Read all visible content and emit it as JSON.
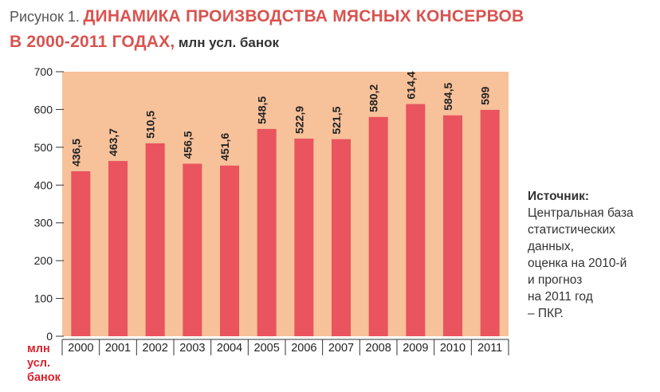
{
  "figure": {
    "label": "Рисунок 1.",
    "title_line1": "ДИНАМИКА ПРОИЗВОДСТВА МЯСНЫХ КОНСЕРВОВ",
    "title_line2": "В 2000-2011 ГОДАХ,",
    "units": "млн усл. банок"
  },
  "source": {
    "title": "Источник:",
    "lines": [
      "Центральная база",
      "статистических",
      "данных,",
      "оценка на 2010-й",
      "и прогноз",
      "на 2011 год",
      "– ПКР."
    ]
  },
  "colors": {
    "plot_bg": "#f7c19a",
    "bar": "#e9545e",
    "axis_unit_label": "#d9232d",
    "title_accent": "#d9534f"
  },
  "chart_data": {
    "type": "bar",
    "title": "ДИНАМИКА ПРОИЗВОДСТВА МЯСНЫХ КОНСЕРВОВ В 2000-2011 ГОДАХ, млн усл. банок",
    "categories": [
      "2000",
      "2001",
      "2002",
      "2003",
      "2004",
      "2005",
      "2006",
      "2007",
      "2008",
      "2009",
      "2010",
      "2011"
    ],
    "values": [
      436.5,
      463.7,
      510.5,
      456.5,
      451.6,
      548.5,
      522.9,
      521.5,
      580.2,
      614.4,
      584.5,
      599
    ],
    "value_labels": [
      "436,5",
      "463,7",
      "510,5",
      "456,5",
      "451,6",
      "548,5",
      "522,9",
      "521,5",
      "580,2",
      "614,4",
      "584,5",
      "599"
    ],
    "xlabel": "",
    "ylabel_lines": [
      "млн",
      "усл.",
      "банок"
    ],
    "ylim": [
      0,
      700
    ],
    "yticks": [
      0,
      100,
      200,
      300,
      400,
      500,
      600,
      700
    ],
    "grid": false,
    "legend": "none"
  }
}
